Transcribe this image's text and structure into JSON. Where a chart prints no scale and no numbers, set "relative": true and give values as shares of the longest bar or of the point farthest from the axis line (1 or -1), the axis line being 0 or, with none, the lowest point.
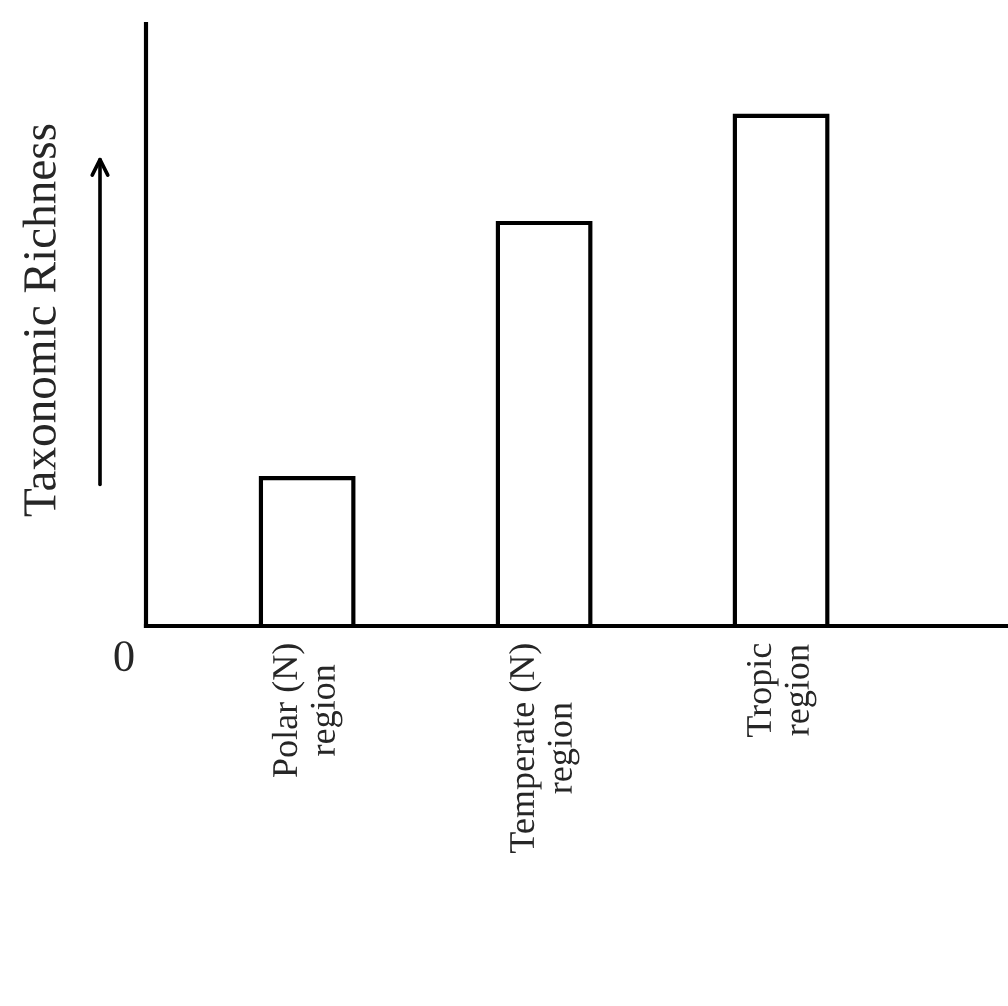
{
  "chart_data": {
    "type": "bar",
    "relative": true,
    "ylabel": "Taxonomic Richness",
    "categories": [
      "Polar (N)\nregion",
      "Temperate (N)\nregion",
      "Tropic\nregion"
    ],
    "values": [
      0.29,
      0.79,
      1
    ],
    "color": "#ffffff",
    "annotations": [
      "0"
    ],
    "grid": false,
    "legend": false
  }
}
